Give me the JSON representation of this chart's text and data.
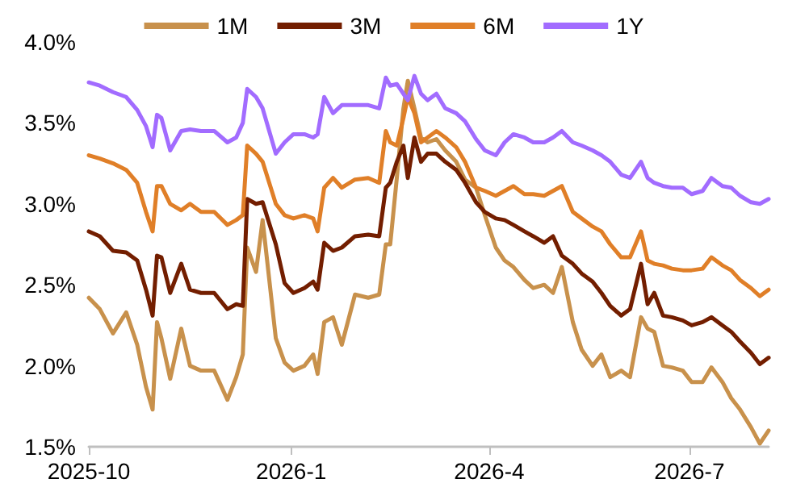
{
  "chart_data": {
    "type": "line",
    "x": [
      "2025-10-01",
      "2025-10-06",
      "2025-10-12",
      "2025-10-18",
      "2025-10-23",
      "2025-10-27",
      "2025-10-30",
      "2025-11-01",
      "2025-11-03",
      "2025-11-07",
      "2025-11-12",
      "2025-11-16",
      "2025-11-21",
      "2025-11-27",
      "2025-12-03",
      "2025-12-07",
      "2025-12-10",
      "2025-12-12",
      "2025-12-16",
      "2025-12-19",
      "2025-12-25",
      "2025-12-29",
      "2026-01-02",
      "2026-01-07",
      "2026-01-11",
      "2026-01-13",
      "2026-01-16",
      "2026-01-20",
      "2026-01-24",
      "2026-01-30",
      "2026-02-05",
      "2026-02-10",
      "2026-02-13",
      "2026-02-15",
      "2026-02-18",
      "2026-02-21",
      "2026-02-23",
      "2026-02-26",
      "2026-03-01",
      "2026-03-04",
      "2026-03-08",
      "2026-03-12",
      "2026-03-17",
      "2026-03-21",
      "2026-03-26",
      "2026-03-30",
      "2026-04-04",
      "2026-04-08",
      "2026-04-12",
      "2026-04-17",
      "2026-04-21",
      "2026-04-26",
      "2026-04-30",
      "2026-05-04",
      "2026-05-09",
      "2026-05-13",
      "2026-05-18",
      "2026-05-22",
      "2026-05-26",
      "2026-05-31",
      "2026-06-04",
      "2026-06-09",
      "2026-06-12",
      "2026-06-15",
      "2026-06-19",
      "2026-06-23",
      "2026-06-28",
      "2026-07-02",
      "2026-07-07",
      "2026-07-11",
      "2026-07-16",
      "2026-07-20",
      "2026-07-24",
      "2026-07-29",
      "2026-08-02",
      "2026-08-06"
    ],
    "series": [
      {
        "name": "1M",
        "color": "#c8914c",
        "values": [
          2.42,
          2.35,
          2.2,
          2.33,
          2.13,
          1.87,
          1.73,
          2.27,
          2.17,
          1.92,
          2.23,
          2.0,
          1.97,
          1.97,
          1.79,
          1.93,
          2.07,
          2.73,
          2.58,
          2.9,
          2.17,
          2.02,
          1.97,
          2.0,
          2.07,
          1.95,
          2.27,
          2.3,
          2.13,
          2.44,
          2.42,
          2.44,
          2.75,
          2.75,
          3.16,
          3.59,
          3.76,
          3.59,
          3.41,
          3.38,
          3.4,
          3.33,
          3.26,
          3.15,
          3.1,
          2.93,
          2.73,
          2.65,
          2.61,
          2.53,
          2.48,
          2.5,
          2.45,
          2.61,
          2.27,
          2.1,
          2.0,
          2.07,
          1.93,
          1.97,
          1.93,
          2.3,
          2.23,
          2.21,
          2.0,
          1.99,
          1.97,
          1.9,
          1.9,
          1.99,
          1.9,
          1.8,
          1.73,
          1.62,
          1.52,
          1.6
        ]
      },
      {
        "name": "3M",
        "color": "#731e00",
        "values": [
          2.83,
          2.8,
          2.71,
          2.7,
          2.65,
          2.47,
          2.31,
          2.68,
          2.67,
          2.45,
          2.63,
          2.47,
          2.45,
          2.45,
          2.35,
          2.38,
          2.37,
          3.03,
          3.0,
          3.01,
          2.75,
          2.51,
          2.45,
          2.48,
          2.52,
          2.47,
          2.76,
          2.71,
          2.73,
          2.8,
          2.81,
          2.8,
          3.1,
          3.13,
          3.26,
          3.36,
          3.16,
          3.41,
          3.26,
          3.31,
          3.31,
          3.26,
          3.21,
          3.13,
          3.01,
          2.95,
          2.91,
          2.9,
          2.87,
          2.83,
          2.8,
          2.76,
          2.8,
          2.68,
          2.63,
          2.57,
          2.52,
          2.45,
          2.37,
          2.31,
          2.35,
          2.63,
          2.38,
          2.45,
          2.31,
          2.3,
          2.28,
          2.25,
          2.27,
          2.3,
          2.25,
          2.21,
          2.15,
          2.08,
          2.01,
          2.05
        ]
      },
      {
        "name": "6M",
        "color": "#e07f28",
        "values": [
          3.3,
          3.28,
          3.25,
          3.21,
          3.13,
          2.95,
          2.83,
          3.11,
          3.11,
          3.0,
          2.96,
          3.0,
          2.95,
          2.95,
          2.87,
          2.9,
          2.93,
          3.36,
          3.31,
          3.26,
          3.0,
          2.93,
          2.91,
          2.93,
          2.91,
          2.83,
          3.1,
          3.16,
          3.1,
          3.15,
          3.16,
          3.13,
          3.45,
          3.38,
          3.36,
          3.53,
          3.66,
          3.56,
          3.38,
          3.41,
          3.45,
          3.41,
          3.35,
          3.26,
          3.1,
          3.08,
          3.05,
          3.08,
          3.11,
          3.06,
          3.06,
          3.05,
          3.08,
          3.11,
          2.95,
          2.91,
          2.86,
          2.83,
          2.75,
          2.67,
          2.67,
          2.83,
          2.65,
          2.63,
          2.62,
          2.6,
          2.59,
          2.59,
          2.6,
          2.67,
          2.62,
          2.59,
          2.53,
          2.48,
          2.43,
          2.47
        ]
      },
      {
        "name": "1Y",
        "color": "#a26cff",
        "values": [
          3.75,
          3.73,
          3.69,
          3.66,
          3.58,
          3.48,
          3.35,
          3.55,
          3.53,
          3.33,
          3.45,
          3.46,
          3.45,
          3.45,
          3.38,
          3.41,
          3.5,
          3.71,
          3.66,
          3.59,
          3.31,
          3.38,
          3.43,
          3.43,
          3.41,
          3.43,
          3.66,
          3.56,
          3.61,
          3.61,
          3.61,
          3.59,
          3.78,
          3.73,
          3.74,
          3.68,
          3.64,
          3.79,
          3.68,
          3.64,
          3.68,
          3.59,
          3.56,
          3.51,
          3.4,
          3.33,
          3.3,
          3.38,
          3.43,
          3.41,
          3.38,
          3.38,
          3.41,
          3.45,
          3.38,
          3.36,
          3.33,
          3.3,
          3.26,
          3.18,
          3.16,
          3.26,
          3.16,
          3.13,
          3.11,
          3.1,
          3.1,
          3.06,
          3.08,
          3.16,
          3.11,
          3.1,
          3.05,
          3.01,
          3.0,
          3.03
        ]
      }
    ],
    "xlim": [
      "2025-10-01",
      "2026-08-06"
    ],
    "xticks": [
      {
        "value": "2025-10-01",
        "label": "2025-10"
      },
      {
        "value": "2026-01-01",
        "label": "2026-1"
      },
      {
        "value": "2026-04-01",
        "label": "2026-4"
      },
      {
        "value": "2026-07-01",
        "label": "2026-7"
      }
    ],
    "ylim": [
      1.5,
      4.0
    ],
    "yticks": [
      {
        "value": 1.5,
        "label": "1.5%"
      },
      {
        "value": 2.0,
        "label": "2.0%"
      },
      {
        "value": 2.5,
        "label": "2.5%"
      },
      {
        "value": 3.0,
        "label": "3.0%"
      },
      {
        "value": 3.5,
        "label": "3.5%"
      },
      {
        "value": 4.0,
        "label": "4.0%"
      }
    ],
    "grid": false,
    "legend": "top",
    "marker": "none",
    "line_style": "solid"
  }
}
